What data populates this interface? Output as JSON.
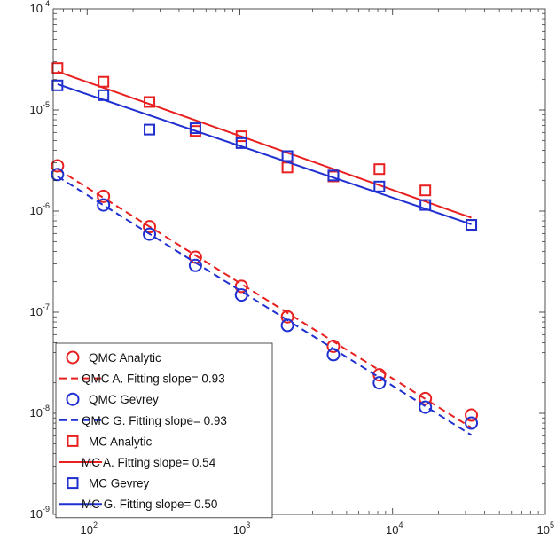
{
  "chart_data": {
    "type": "scatter",
    "title": "",
    "xlabel": "",
    "ylabel": "",
    "xscale": "log",
    "yscale": "log",
    "xlim": [
      60,
      100000
    ],
    "ylim": [
      1e-09,
      0.0001
    ],
    "grid": false,
    "legend_position": "bottom-left",
    "x_ticks": [
      {
        "value": 100,
        "base": "10",
        "exp": "2"
      },
      {
        "value": 1000,
        "base": "10",
        "exp": "3"
      },
      {
        "value": 10000,
        "base": "10",
        "exp": "4"
      },
      {
        "value": 100000,
        "base": "10",
        "exp": "5"
      }
    ],
    "y_ticks": [
      {
        "value": 1e-09,
        "base": "10",
        "exp": "-9"
      },
      {
        "value": 1e-08,
        "base": "10",
        "exp": "-8"
      },
      {
        "value": 1e-07,
        "base": "10",
        "exp": "-7"
      },
      {
        "value": 1e-06,
        "base": "10",
        "exp": "-6"
      },
      {
        "value": 1e-05,
        "base": "10",
        "exp": "-5"
      },
      {
        "value": 0.0001,
        "base": "10",
        "exp": "-4"
      }
    ],
    "series": [
      {
        "name": "QMC Analytic",
        "kind": "marker",
        "marker": "circle",
        "color": "#e8201f",
        "x": [
          64,
          128,
          256,
          512,
          1024,
          2048,
          4096,
          8192,
          16384,
          32768
        ],
        "y": [
          2.8e-06,
          1.4e-06,
          7e-07,
          3.5e-07,
          1.8e-07,
          9e-08,
          4.6e-08,
          2.4e-08,
          1.4e-08,
          9.6e-09
        ]
      },
      {
        "name": "QMC A. Fitting slope= 0.93",
        "kind": "line",
        "dash": "dashed",
        "color": "#e8201f",
        "x": [
          64,
          32768
        ],
        "y": [
          2.6e-06,
          7.2e-09
        ]
      },
      {
        "name": "QMC Gevrey",
        "kind": "marker",
        "marker": "circle",
        "color": "#1f2fd0",
        "x": [
          64,
          128,
          256,
          512,
          1024,
          2048,
          4096,
          8192,
          16384,
          32768
        ],
        "y": [
          2.3e-06,
          1.15e-06,
          5.9e-07,
          2.9e-07,
          1.48e-07,
          7.4e-08,
          3.8e-08,
          2e-08,
          1.15e-08,
          8e-09
        ]
      },
      {
        "name": "QMC G. Fitting slope= 0.93",
        "kind": "line",
        "dash": "dashed",
        "color": "#1f2fd0",
        "x": [
          64,
          32768
        ],
        "y": [
          2.2e-06,
          6.1e-09
        ]
      },
      {
        "name": "MC Analytic",
        "kind": "marker",
        "marker": "square",
        "color": "#e8201f",
        "x": [
          64,
          128,
          256,
          512,
          1024,
          2048,
          4096,
          8192,
          16384,
          32768
        ],
        "y": [
          2.6e-05,
          1.9e-05,
          1.2e-05,
          6.2e-06,
          5.5e-06,
          2.7e-06,
          2.2e-06,
          2.6e-06,
          1.6e-06,
          7.3e-07
        ]
      },
      {
        "name": "MC A. Fitting slope= 0.54",
        "kind": "line",
        "dash": "solid",
        "color": "#e8201f",
        "x": [
          64,
          32768
        ],
        "y": [
          2.4e-05,
          8.6e-07
        ]
      },
      {
        "name": "MC Gevrey",
        "kind": "marker",
        "marker": "square",
        "color": "#1f2fd0",
        "x": [
          64,
          128,
          256,
          512,
          1024,
          2048,
          4096,
          8192,
          16384,
          32768
        ],
        "y": [
          1.75e-05,
          1.4e-05,
          6.4e-06,
          6.6e-06,
          4.7e-06,
          3.5e-06,
          2.25e-06,
          1.75e-06,
          1.15e-06,
          7.3e-07
        ]
      },
      {
        "name": "MC G. Fitting slope= 0.50",
        "kind": "line",
        "dash": "solid",
        "color": "#1f2fd0",
        "x": [
          64,
          32768
        ],
        "y": [
          1.8e-05,
          7.4e-07
        ]
      }
    ]
  }
}
